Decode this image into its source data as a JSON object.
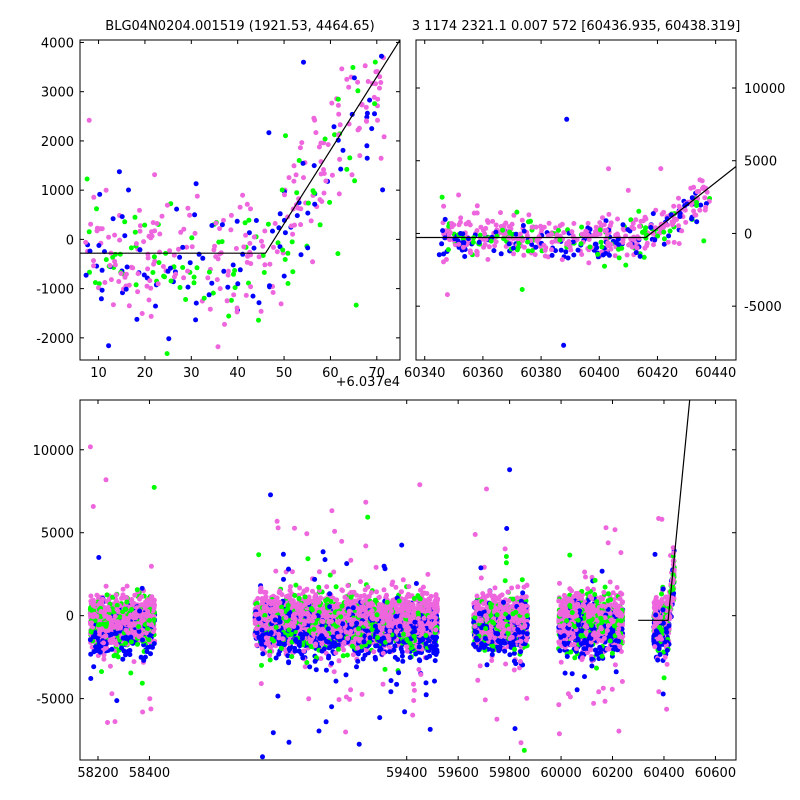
{
  "figure": {
    "title_left": "BLG04N0204.001519 (1921.53, 4464.65)",
    "title_right": "3 1174 2321.1 0.007 572 [60436.935, 60438.319]",
    "series_colors": [
      "#0000ff",
      "#00ff00",
      "#ee66dd"
    ],
    "fit_color": "#000000"
  },
  "chart_data": [
    {
      "type": "scatter",
      "panel": "top-left",
      "x_offset_label": "+6.037e4",
      "xlim": [
        6,
        75
      ],
      "ylim": [
        -2450,
        4050
      ],
      "xticks": [
        10,
        20,
        30,
        40,
        50,
        60,
        70
      ],
      "yticks": [
        -2000,
        -1000,
        0,
        1000,
        2000,
        3000,
        4000
      ],
      "y_axis_side": "left",
      "grid": false,
      "fit_line": {
        "x": [
          6,
          46,
          75
        ],
        "y": [
          -280,
          -280,
          4050
        ]
      }
    },
    {
      "type": "scatter",
      "panel": "top-right",
      "xlim": [
        60337,
        60447
      ],
      "ylim": [
        -8700,
        13300
      ],
      "xticks": [
        60340,
        60360,
        60380,
        60400,
        60420,
        60440
      ],
      "yticks": [
        -5000,
        0,
        5000,
        10000
      ],
      "y_axis_side": "right",
      "grid": false,
      "fit_line": {
        "x": [
          60337,
          60416,
          60447
        ],
        "y": [
          -280,
          -280,
          4600
        ]
      }
    },
    {
      "type": "scatter",
      "panel": "bottom",
      "xlim": [
        58130,
        60680
      ],
      "ylim": [
        -8700,
        13000
      ],
      "xticks": [
        58200,
        58400,
        59400,
        59600,
        59800,
        60000,
        60200,
        60400,
        60600
      ],
      "yticks": [
        -5000,
        0,
        5000,
        10000
      ],
      "y_axis_side": "left",
      "grid": false,
      "clusters_x": [
        [
          58170,
          58420
        ],
        [
          58810,
          59520
        ],
        [
          59660,
          59870
        ],
        [
          59990,
          60240
        ],
        [
          60360,
          60440
        ]
      ],
      "fit_line": {
        "x": [
          60300,
          60416,
          60500
        ],
        "y": [
          -280,
          -280,
          13000
        ]
      }
    }
  ]
}
